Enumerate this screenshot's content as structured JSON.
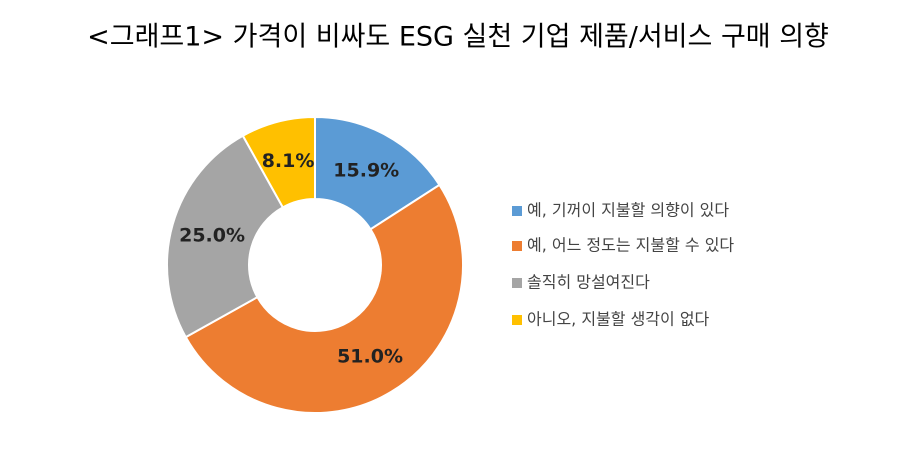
{
  "chart_data": {
    "type": "pie",
    "title": "<그래프1> 가격이 비싸도 ESG 실천 기업 제품/서비스 구매 의향",
    "categories": [
      "예, 기꺼이 지불할 의향이 있다",
      "예, 어느 정도는 지불할 수 있다",
      "솔직히 망설여진다",
      "아니오, 지불할 생각이 없다"
    ],
    "values": [
      15.9,
      51.0,
      25.0,
      8.1
    ],
    "value_labels": [
      "15.9%",
      "51.0%",
      "25.0%",
      "8.1%"
    ],
    "colors": [
      "#5b9bd5",
      "#ed7d31",
      "#a5a5a5",
      "#ffc000"
    ],
    "legend": "right"
  }
}
